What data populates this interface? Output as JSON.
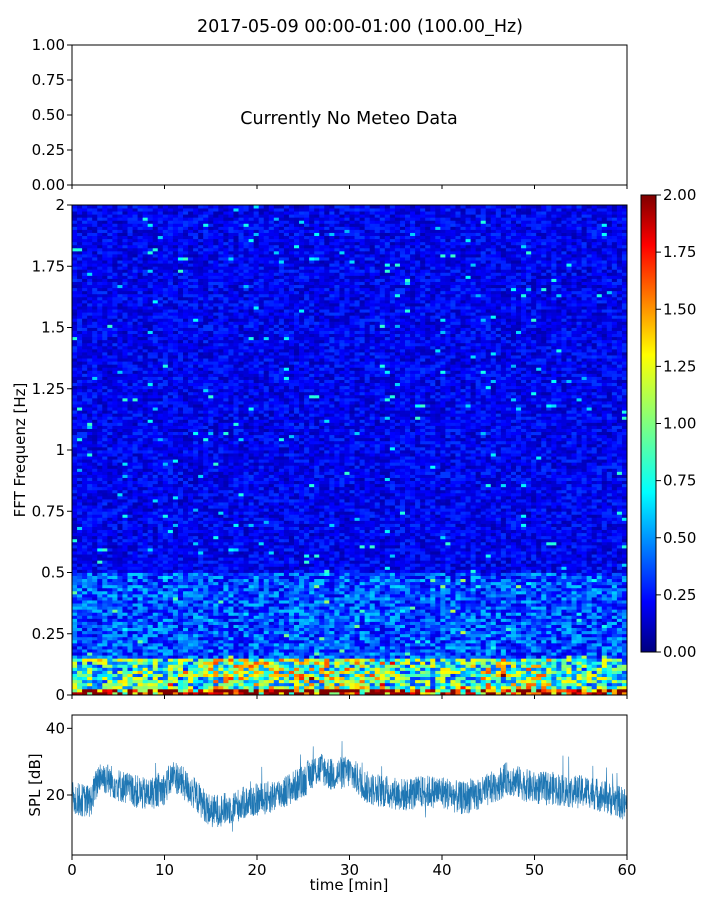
{
  "figure_title": "2017-05-09 00:00-01:00 (100.00_Hz)",
  "meteo_panel": {
    "message": "Currently No Meteo Data",
    "yticks": [
      "0.00",
      "0.25",
      "0.50",
      "0.75",
      "1.00"
    ]
  },
  "spectrogram_panel": {
    "ylabel": "FFT Frequenz [Hz]",
    "yticks": [
      "0",
      "0.25",
      "0.5",
      "0.75",
      "1",
      "1.25",
      "1.5",
      "1.75",
      "2"
    ],
    "colorbar_ticks": [
      "0.00",
      "0.25",
      "0.50",
      "0.75",
      "1.00",
      "1.25",
      "1.50",
      "1.75",
      "2.00"
    ]
  },
  "spl_panel": {
    "ylabel": "SPL [dB]",
    "yticks": [
      "20",
      "40"
    ],
    "xlabel": "time [min]",
    "xticks": [
      "0",
      "10",
      "20",
      "30",
      "40",
      "50",
      "60"
    ]
  },
  "chart_data": [
    {
      "type": "line",
      "panel": "meteo",
      "title": "2017-05-09 00:00-01:00 (100.00_Hz)",
      "annotation": "Currently No Meteo Data",
      "xlim": [
        0,
        60
      ],
      "ylim": [
        0,
        1
      ],
      "series": []
    },
    {
      "type": "heatmap",
      "panel": "spectrogram",
      "ylabel": "FFT Frequenz [Hz]",
      "xlim": [
        0,
        60
      ],
      "ylim": [
        0,
        2
      ],
      "colormap": "jet",
      "clim": [
        0,
        2
      ],
      "colors": {
        "low": "#00007f",
        "mid_low": "#0000ff",
        "mid": "#00ffff",
        "mid_high": "#ffff00",
        "high": "#ff0000",
        "top": "#7f0000"
      },
      "typical_levels": [
        {
          "freq_range": [
            0.0,
            0.03
          ],
          "level": 1.8
        },
        {
          "freq_range": [
            0.03,
            0.15
          ],
          "level": 0.9
        },
        {
          "freq_range": [
            0.15,
            0.5
          ],
          "level": 0.45
        },
        {
          "freq_range": [
            0.5,
            2.0
          ],
          "level": 0.25
        }
      ]
    },
    {
      "type": "line",
      "panel": "spl",
      "xlabel": "time [min]",
      "ylabel": "SPL [dB]",
      "xlim": [
        0,
        60
      ],
      "ylim": [
        2,
        44
      ],
      "color": "#1f77b4",
      "envelope": {
        "x": [
          0,
          2,
          3,
          5,
          8,
          10,
          11,
          13,
          15,
          17,
          19,
          21,
          23,
          25,
          26,
          27,
          28,
          30,
          32,
          34,
          36,
          38,
          40,
          42,
          44,
          46,
          47,
          48,
          50,
          52,
          54,
          56,
          58,
          60
        ],
        "y": [
          19,
          18,
          26,
          23,
          20,
          22,
          26,
          21,
          15,
          16,
          18,
          19,
          21,
          24,
          27,
          28,
          26,
          27,
          22,
          21,
          20,
          21,
          21,
          19,
          20,
          23,
          25,
          24,
          22,
          22,
          21,
          21,
          19,
          17
        ]
      }
    }
  ]
}
